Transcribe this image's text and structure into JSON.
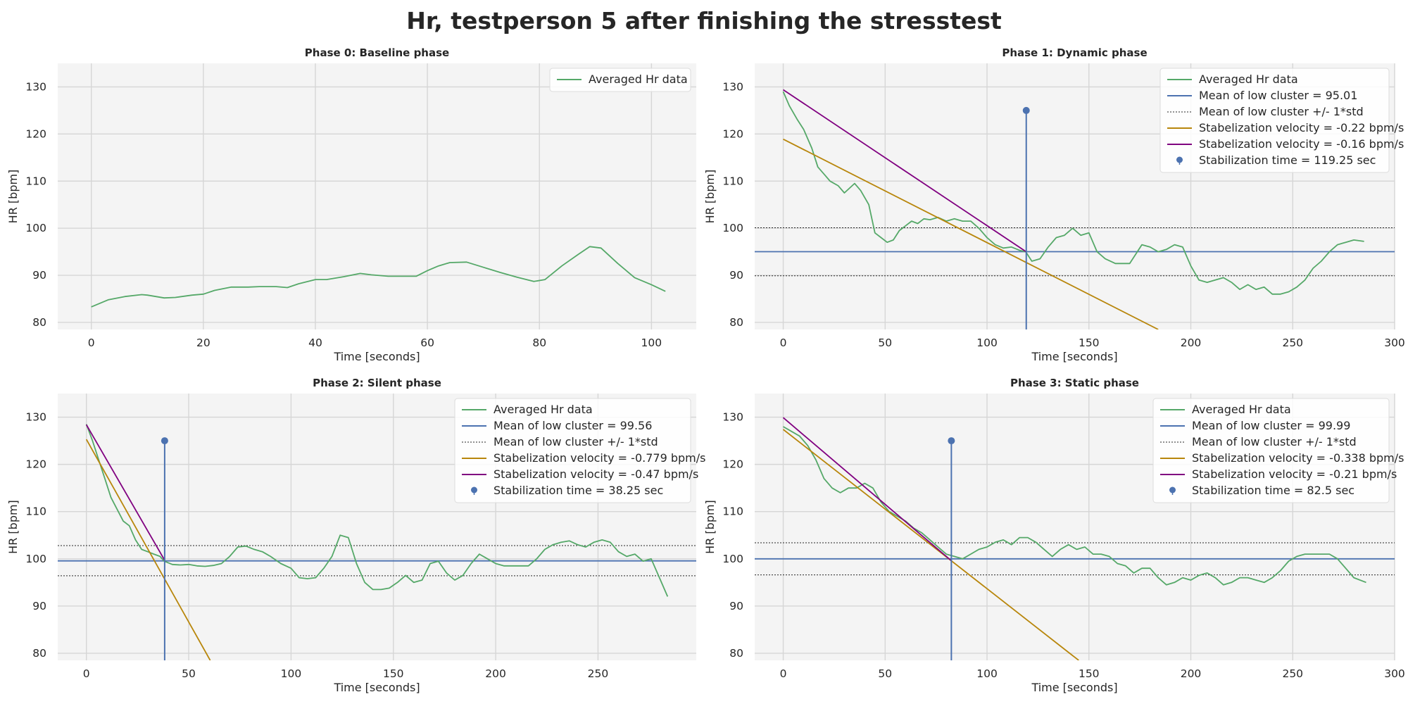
{
  "title": "Hr, testperson 5 after finishing the stresstest",
  "chart_data": [
    {
      "type": "line",
      "title": "Phase 0: Baseline phase",
      "xlabel": "Time [seconds]",
      "ylabel": "HR [bpm]",
      "xlim": [
        -6,
        108
      ],
      "ylim": [
        78.5,
        135
      ],
      "xticks": [
        0,
        20,
        40,
        60,
        80,
        100
      ],
      "yticks": [
        80,
        90,
        100,
        110,
        120,
        130
      ],
      "grid": true,
      "legend_position": "top-right",
      "series": [
        {
          "name": "Averaged Hr data",
          "color": "#55a868",
          "x": [
            0,
            3,
            6,
            9,
            10,
            13,
            15,
            18,
            20,
            22,
            25,
            28,
            30,
            33,
            35,
            37,
            40,
            42,
            45,
            48,
            50,
            53,
            55,
            58,
            60,
            62,
            64,
            67,
            70,
            73,
            76,
            79,
            81,
            84,
            87,
            89,
            91,
            94,
            97,
            100,
            102.5
          ],
          "y": [
            83.3,
            84.8,
            85.5,
            85.9,
            85.8,
            85.2,
            85.3,
            85.8,
            86,
            86.8,
            87.5,
            87.5,
            87.6,
            87.6,
            87.4,
            88.2,
            89.1,
            89.1,
            89.7,
            90.4,
            90.1,
            89.8,
            89.8,
            89.8,
            91,
            92,
            92.7,
            92.8,
            91.7,
            90.6,
            89.6,
            88.7,
            89.1,
            92,
            94.5,
            96.1,
            95.8,
            92.5,
            89.5,
            88,
            86.6
          ]
        }
      ]
    },
    {
      "type": "line",
      "title": "Phase 1: Dynamic phase",
      "xlabel": "Time [seconds]",
      "ylabel": "HR [bpm]",
      "xlim": [
        -14,
        300
      ],
      "ylim": [
        78.5,
        135
      ],
      "xticks": [
        0,
        50,
        100,
        150,
        200,
        250,
        300
      ],
      "yticks": [
        80,
        90,
        100,
        110,
        120,
        130
      ],
      "grid": true,
      "legend_position": "top-right",
      "stabilization_time": 119.25,
      "marker_top": 125,
      "mean_low_cluster": 95.01,
      "band": [
        89.9,
        100.1
      ],
      "series": [
        {
          "name": "Averaged Hr data",
          "color": "#55a868",
          "x": [
            0,
            3,
            7,
            10,
            14,
            17,
            20,
            23,
            27,
            30,
            35,
            38,
            42,
            45,
            48,
            51,
            54,
            57,
            60,
            63,
            66,
            69,
            72,
            76,
            80,
            84,
            88,
            92,
            96,
            100,
            104,
            108,
            112,
            116,
            119,
            122,
            126,
            130,
            134,
            138,
            142,
            146,
            150,
            154,
            158,
            163,
            170,
            176,
            180,
            184,
            188,
            192,
            196,
            200,
            204,
            208,
            212,
            216,
            220,
            224,
            228,
            232,
            236,
            240,
            244,
            248,
            252,
            256,
            260,
            264,
            268,
            272,
            276,
            280,
            285
          ],
          "y": [
            129,
            126,
            123,
            121,
            117,
            113,
            111.5,
            110,
            109,
            107.5,
            109.5,
            108,
            105,
            99,
            98,
            97,
            97.5,
            99.5,
            100.5,
            101.5,
            101,
            102,
            101.8,
            102.3,
            101.5,
            102,
            101.5,
            101.5,
            100,
            98,
            96.5,
            95.8,
            96,
            95.3,
            95,
            93,
            93.5,
            96,
            98,
            98.5,
            100,
            98.5,
            99,
            95,
            93.5,
            92.5,
            92.5,
            96.5,
            96,
            95,
            95.5,
            96.5,
            96,
            92,
            89,
            88.5,
            89,
            89.5,
            88.5,
            87,
            88,
            87,
            87.5,
            86,
            86,
            86.5,
            87.5,
            89,
            91.5,
            93,
            95,
            96.5,
            97,
            97.5,
            97.2
          ]
        },
        {
          "name": "Mean of low cluster = 95.01",
          "color": "#4c72b0",
          "x": [
            -14,
            300
          ],
          "y": [
            95.01,
            95.01
          ]
        },
        {
          "name": "Mean of low cluster +/- 1*std",
          "color": "#262626",
          "style": "dotted",
          "x": [
            -14,
            300
          ],
          "y": [
            100.1,
            100.1
          ]
        },
        {
          "name": "Stabelization velocity = -0.22 bpm/s",
          "color": "#b8860b",
          "x": [
            0,
            184
          ],
          "y": [
            118.9,
            78.5
          ]
        },
        {
          "name": "Stabelization velocity = -0.16 bpm/s",
          "color": "#800080",
          "x": [
            0,
            119.25
          ],
          "y": [
            129.4,
            95.0
          ]
        },
        {
          "name": "Stabilization time = 119.25 sec",
          "color": "#4c72b0",
          "type": "stem",
          "x": [
            119.25
          ],
          "y": [
            125
          ]
        }
      ]
    },
    {
      "type": "line",
      "title": "Phase 2: Silent phase",
      "xlabel": "Time [seconds]",
      "ylabel": "HR [bpm]",
      "xlim": [
        -14,
        298
      ],
      "ylim": [
        78.5,
        135
      ],
      "xticks": [
        0,
        50,
        100,
        150,
        200,
        250
      ],
      "yticks": [
        80,
        90,
        100,
        110,
        120,
        130
      ],
      "grid": true,
      "legend_position": "top-right",
      "stabilization_time": 38.25,
      "marker_top": 125,
      "mean_low_cluster": 99.56,
      "band": [
        96.4,
        102.8
      ],
      "series": [
        {
          "name": "Averaged Hr data",
          "color": "#55a868",
          "x": [
            0,
            3,
            6,
            9,
            12,
            15,
            18,
            21,
            24,
            27,
            30,
            33,
            36,
            38,
            42,
            46,
            50,
            54,
            58,
            62,
            66,
            70,
            74,
            78,
            82,
            86,
            90,
            95,
            100,
            104,
            108,
            112,
            116,
            120,
            124,
            128,
            132,
            136,
            140,
            144,
            148,
            152,
            156,
            160,
            164,
            168,
            172,
            176,
            180,
            184,
            188,
            192,
            196,
            200,
            204,
            208,
            212,
            216,
            220,
            224,
            228,
            232,
            236,
            240,
            244,
            248,
            252,
            256,
            260,
            264,
            268,
            272,
            276,
            280,
            284
          ],
          "y": [
            128.5,
            125,
            121,
            117,
            113,
            110.5,
            108,
            107,
            104,
            102,
            101.5,
            101,
            100.5,
            99.5,
            98.8,
            98.7,
            98.8,
            98.5,
            98.4,
            98.6,
            99,
            100.5,
            102.5,
            102.7,
            102,
            101.5,
            100.5,
            99,
            98,
            96,
            95.8,
            96,
            98,
            100.5,
            105,
            104.5,
            99,
            95,
            93.5,
            93.5,
            93.8,
            95,
            96.5,
            95,
            95.5,
            99,
            99.5,
            97,
            95.5,
            96.5,
            99,
            101,
            100,
            99,
            98.5,
            98.5,
            98.5,
            98.5,
            100,
            102,
            103,
            103.5,
            103.8,
            103,
            102.5,
            103.5,
            104,
            103.5,
            101.5,
            100.5,
            101,
            99.5,
            100,
            96,
            92
          ]
        },
        {
          "name": "Mean of low cluster = 99.56",
          "color": "#4c72b0",
          "x": [
            -14,
            298
          ],
          "y": [
            99.56,
            99.56
          ]
        },
        {
          "name": "Mean of low cluster +/- 1*std",
          "color": "#262626",
          "style": "dotted",
          "x": [
            -14,
            298
          ],
          "y": [
            102.8,
            102.8
          ]
        },
        {
          "name": "Stabelization velocity = -0.779 bpm/s",
          "color": "#b8860b",
          "x": [
            0,
            60.5
          ],
          "y": [
            125.3,
            78.5
          ]
        },
        {
          "name": "Stabelization velocity = -0.47 bpm/s",
          "color": "#800080",
          "x": [
            0,
            38.25
          ],
          "y": [
            128.4,
            99.7
          ]
        },
        {
          "name": "Stabilization time = 38.25 sec",
          "color": "#4c72b0",
          "type": "stem",
          "x": [
            38.25
          ],
          "y": [
            125
          ]
        }
      ]
    },
    {
      "type": "line",
      "title": "Phase 3: Static phase",
      "xlabel": "Time [seconds]",
      "ylabel": "HR [bpm]",
      "xlim": [
        -14,
        300
      ],
      "ylim": [
        78.5,
        135
      ],
      "xticks": [
        0,
        50,
        100,
        150,
        200,
        250,
        300
      ],
      "yticks": [
        80,
        90,
        100,
        110,
        120,
        130
      ],
      "grid": true,
      "legend_position": "top-right",
      "stabilization_time": 82.5,
      "marker_top": 125,
      "mean_low_cluster": 99.99,
      "band": [
        96.6,
        103.4
      ],
      "series": [
        {
          "name": "Averaged Hr data",
          "color": "#55a868",
          "x": [
            0,
            4,
            8,
            12,
            16,
            20,
            24,
            28,
            32,
            36,
            40,
            44,
            48,
            52,
            56,
            60,
            64,
            68,
            72,
            76,
            80,
            84,
            88,
            92,
            96,
            100,
            104,
            108,
            112,
            116,
            120,
            124,
            128,
            132,
            136,
            140,
            144,
            148,
            152,
            156,
            160,
            164,
            168,
            172,
            176,
            180,
            184,
            188,
            192,
            196,
            200,
            204,
            208,
            212,
            216,
            220,
            224,
            228,
            232,
            236,
            240,
            244,
            248,
            252,
            256,
            260,
            264,
            268,
            272,
            276,
            280,
            286
          ],
          "y": [
            128,
            127,
            126,
            124,
            121,
            117,
            115,
            114,
            115,
            115,
            116,
            115,
            112,
            110,
            109,
            108,
            106.5,
            105.5,
            104,
            102.5,
            101,
            100.5,
            100,
            101,
            102,
            102.5,
            103.5,
            104,
            103,
            104.5,
            104.5,
            103.5,
            102,
            100.5,
            102,
            103,
            102,
            102.5,
            101,
            101,
            100.5,
            99,
            98.5,
            97,
            98,
            98,
            96,
            94.5,
            95,
            96,
            95.5,
            96.5,
            97,
            96,
            94.5,
            95,
            96,
            96,
            95.5,
            95,
            96,
            97.5,
            99.5,
            100.5,
            101,
            101,
            101,
            101,
            100,
            98,
            96,
            95
          ]
        },
        {
          "name": "Mean of low cluster = 99.99",
          "color": "#4c72b0",
          "x": [
            -14,
            300
          ],
          "y": [
            99.99,
            99.99
          ]
        },
        {
          "name": "Mean of low cluster +/- 1*std",
          "color": "#262626",
          "style": "dotted",
          "x": [
            -14,
            300
          ],
          "y": [
            103.4,
            103.4
          ]
        },
        {
          "name": "Stabelization velocity = -0.338 bpm/s",
          "color": "#b8860b",
          "x": [
            0,
            145
          ],
          "y": [
            127.4,
            78.5
          ]
        },
        {
          "name": "Stabelization velocity = -0.21 bpm/s",
          "color": "#800080",
          "x": [
            0,
            82.5
          ],
          "y": [
            129.9,
            99.6
          ]
        },
        {
          "name": "Stabilization time = 82.5 sec",
          "color": "#4c72b0",
          "type": "stem",
          "x": [
            82.5
          ],
          "y": [
            125
          ]
        }
      ]
    }
  ]
}
